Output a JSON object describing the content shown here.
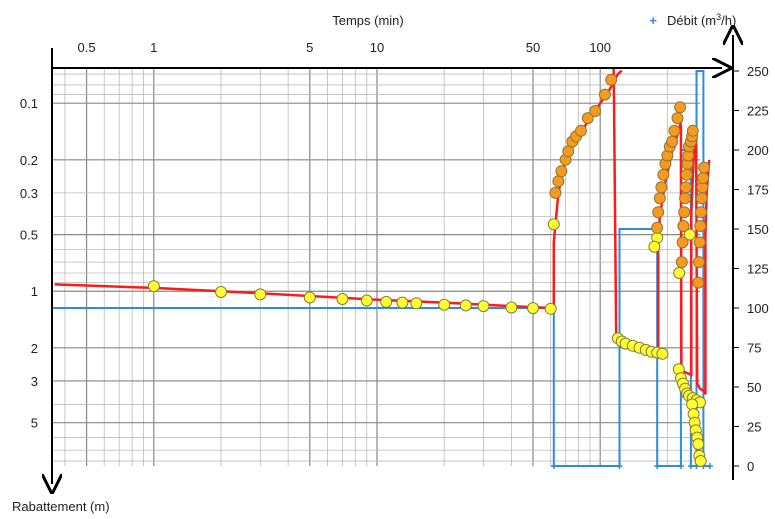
{
  "chart_data": {
    "type": "scatter",
    "title": "",
    "xlabel": "Temps (min)",
    "ylabel_left": "Rabattement (m)",
    "ylabel_right_marker": "+",
    "ylabel_right": "Débit (m",
    "ylabel_right_sup": "3",
    "ylabel_right_end": "/h)",
    "x_scale": "log",
    "xlim": [
      0.35,
      280
    ],
    "x_ticks": [
      "0.5",
      "1",
      "5",
      "10",
      "50",
      "100"
    ],
    "x_tick_values": [
      0.5,
      1,
      5,
      10,
      50,
      100
    ],
    "y_left_scale": "log",
    "y_left_inverted": true,
    "y_left_lim": [
      0.065,
      8.5
    ],
    "y_left_ticks": [
      "0.1",
      "0.2",
      "0.3",
      "0.5",
      "1",
      "2",
      "3",
      "5"
    ],
    "y_left_tick_values": [
      0.1,
      0.2,
      0.3,
      0.5,
      1,
      2,
      3,
      5
    ],
    "y_right_lim": [
      0,
      250
    ],
    "y_right_ticks": [
      "250",
      "225",
      "200",
      "175",
      "150",
      "125",
      "100",
      "75",
      "50",
      "25",
      "0"
    ],
    "y_right_tick_values": [
      250,
      225,
      200,
      175,
      150,
      125,
      100,
      75,
      50,
      25,
      0
    ],
    "grid": true,
    "colors": {
      "model": "#ff1a1a",
      "flow": "#2b8ce0",
      "obs_rest": "#ffff33",
      "obs_pump": "#f79a1f",
      "marker_edge": "#8a7a3a",
      "grid_major": "#888888",
      "grid_minor": "#bbbbbb"
    },
    "series": [
      {
        "role": "observed-recovery",
        "points": [
          [
            1,
            0.94
          ],
          [
            2,
            1.01
          ],
          [
            3,
            1.04
          ],
          [
            5,
            1.08
          ],
          [
            7,
            1.1
          ],
          [
            9,
            1.12
          ],
          [
            11,
            1.14
          ],
          [
            13,
            1.15
          ],
          [
            15,
            1.16
          ],
          [
            20,
            1.18
          ],
          [
            25,
            1.19
          ],
          [
            30,
            1.2
          ],
          [
            40,
            1.22
          ],
          [
            50,
            1.23
          ],
          [
            60,
            1.24
          ],
          [
            62,
            0.44
          ],
          [
            120,
            1.78
          ],
          [
            125,
            1.85
          ],
          [
            130,
            1.9
          ],
          [
            140,
            1.95
          ],
          [
            150,
            2.0
          ],
          [
            160,
            2.05
          ],
          [
            170,
            2.1
          ],
          [
            180,
            2.12
          ],
          [
            190,
            2.15
          ],
          [
            180,
            0.52
          ],
          [
            175,
            0.58
          ],
          [
            225,
            2.6
          ],
          [
            230,
            2.9
          ],
          [
            235,
            3.1
          ],
          [
            240,
            3.3
          ],
          [
            245,
            3.5
          ],
          [
            250,
            3.6
          ],
          [
            260,
            3.7
          ],
          [
            270,
            3.8
          ],
          [
            280,
            3.9
          ],
          [
            226,
            0.8
          ],
          [
            252,
            0.5
          ],
          [
            258,
            4.0
          ],
          [
            262,
            4.5
          ],
          [
            265,
            5.0
          ],
          [
            268,
            5.5
          ],
          [
            272,
            6.0
          ],
          [
            275,
            6.5
          ],
          [
            278,
            7.5
          ],
          [
            282,
            8.0
          ],
          [
            300,
            1.1
          ]
        ]
      },
      {
        "role": "observed-pumping",
        "points": [
          [
            63,
            0.3
          ],
          [
            65,
            0.26
          ],
          [
            67,
            0.23
          ],
          [
            70,
            0.2
          ],
          [
            72,
            0.18
          ],
          [
            75,
            0.16
          ],
          [
            78,
            0.15
          ],
          [
            82,
            0.14
          ],
          [
            88,
            0.12
          ],
          [
            95,
            0.11
          ],
          [
            105,
            0.09
          ],
          [
            112,
            0.075
          ],
          [
            180,
            0.46
          ],
          [
            182,
            0.38
          ],
          [
            185,
            0.32
          ],
          [
            188,
            0.28
          ],
          [
            192,
            0.24
          ],
          [
            196,
            0.21
          ],
          [
            200,
            0.19
          ],
          [
            205,
            0.17
          ],
          [
            210,
            0.16
          ],
          [
            215,
            0.14
          ],
          [
            222,
            0.12
          ],
          [
            228,
            0.105
          ],
          [
            232,
            0.7
          ],
          [
            234,
            0.55
          ],
          [
            236,
            0.45
          ],
          [
            238,
            0.38
          ],
          [
            240,
            0.32
          ],
          [
            242,
            0.28
          ],
          [
            244,
            0.24
          ],
          [
            246,
            0.21
          ],
          [
            248,
            0.19
          ],
          [
            250,
            0.17
          ],
          [
            255,
            0.16
          ],
          [
            258,
            0.15
          ],
          [
            260,
            0.14
          ],
          [
            275,
            0.9
          ],
          [
            277,
            0.7
          ],
          [
            279,
            0.55
          ],
          [
            281,
            0.45
          ],
          [
            283,
            0.38
          ],
          [
            285,
            0.32
          ],
          [
            287,
            0.28
          ],
          [
            289,
            0.25
          ],
          [
            292,
            0.22
          ],
          [
            295,
            0.2
          ],
          [
            298,
            0.18
          ],
          [
            302,
            0.16
          ],
          [
            306,
            0.15
          ]
        ]
      },
      {
        "role": "model-drawdown",
        "segments": [
          [
            [
              0.36,
              0.92
            ],
            [
              1,
              0.96
            ],
            [
              2,
              1.0
            ],
            [
              5,
              1.06
            ],
            [
              10,
              1.11
            ],
            [
              20,
              1.15
            ],
            [
              40,
              1.2
            ],
            [
              61,
              1.23
            ],
            [
              62,
              1.3
            ],
            [
              62,
              0.55
            ],
            [
              65,
              0.3
            ],
            [
              70,
              0.2
            ],
            [
              80,
              0.15
            ],
            [
              90,
              0.12
            ],
            [
              100,
              0.1
            ],
            [
              110,
              0.085
            ],
            [
              120,
              0.07
            ],
            [
              125,
              0.067
            ]
          ],
          [
            [
              115,
              0.065
            ],
            [
              118,
              1.8
            ],
            [
              125,
              1.95
            ],
            [
              140,
              2.05
            ],
            [
              160,
              2.15
            ],
            [
              180,
              2.22
            ],
            [
              182,
              2.25
            ],
            [
              182,
              0.6
            ],
            [
              185,
              0.4
            ],
            [
              195,
              0.27
            ],
            [
              210,
              0.18
            ],
            [
              225,
              0.14
            ],
            [
              232,
              0.12
            ]
          ],
          [
            [
              230,
              0.13
            ],
            [
              231,
              2.6
            ],
            [
              240,
              2.7
            ],
            [
              250,
              2.75
            ],
            [
              256,
              2.8
            ],
            [
              256,
              0.4
            ],
            [
              258,
              0.3
            ],
            [
              262,
              0.2
            ],
            [
              268,
              0.15
            ],
            [
              271,
              0.14
            ]
          ],
          [
            [
              269,
              0.15
            ],
            [
              272,
              3.1
            ],
            [
              280,
              3.3
            ],
            [
              292,
              3.4
            ],
            [
              296,
              3.5
            ],
            [
              296,
              0.5
            ],
            [
              300,
              0.3
            ],
            [
              308,
              0.2
            ]
          ]
        ]
      },
      {
        "role": "flow-rate",
        "steps": [
          [
            [
              0.35,
              100
            ],
            [
              62,
              100
            ],
            [
              62,
              0
            ],
            [
              122,
              0
            ],
            [
              122,
              150
            ],
            [
              180,
              150
            ],
            [
              180,
              0
            ],
            [
              230,
              0
            ],
            [
              230,
              200
            ],
            [
              255,
              200
            ],
            [
              255,
              0
            ],
            [
              270,
              0
            ],
            [
              270,
              250
            ],
            [
              290,
              250
            ],
            [
              290,
              0
            ],
            [
              310,
              0
            ]
          ]
        ]
      }
    ]
  }
}
